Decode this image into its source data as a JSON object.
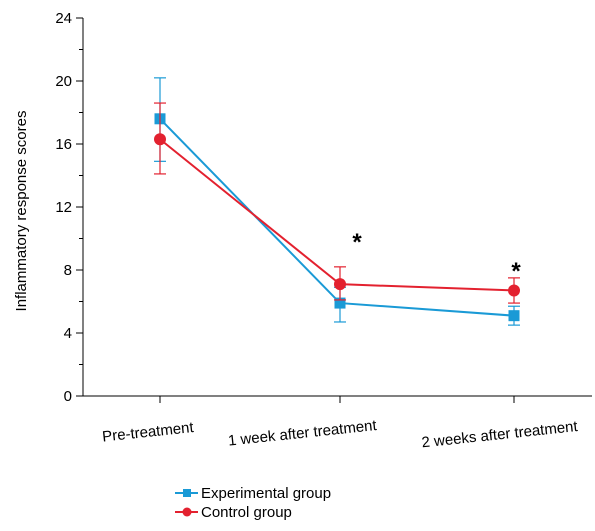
{
  "chart_data": {
    "type": "line",
    "title": "",
    "xlabel": "",
    "ylabel": "Inflammatory response scores",
    "categories": [
      "Pre-treatment",
      "1 week after treatment",
      "2 weeks after treatment"
    ],
    "ylim": [
      0,
      24
    ],
    "yticks": [
      0,
      4,
      8,
      12,
      16,
      20,
      24
    ],
    "grid": false,
    "legend_position": "bottom",
    "series": [
      {
        "name": "Experimental group",
        "color": "#1a9ad6",
        "marker": "square",
        "values": [
          17.6,
          5.9,
          5.1
        ],
        "error_low": [
          14.9,
          4.7,
          4.5
        ],
        "error_high": [
          20.2,
          6.9,
          5.7
        ]
      },
      {
        "name": "Control group",
        "color": "#e3212f",
        "marker": "circle",
        "values": [
          16.3,
          7.1,
          6.7
        ],
        "error_low": [
          14.1,
          6.1,
          5.9
        ],
        "error_high": [
          18.6,
          8.2,
          7.5
        ]
      }
    ],
    "annotations": [
      {
        "text": "*",
        "category_index": 1
      },
      {
        "text": "*",
        "category_index": 2
      }
    ]
  }
}
